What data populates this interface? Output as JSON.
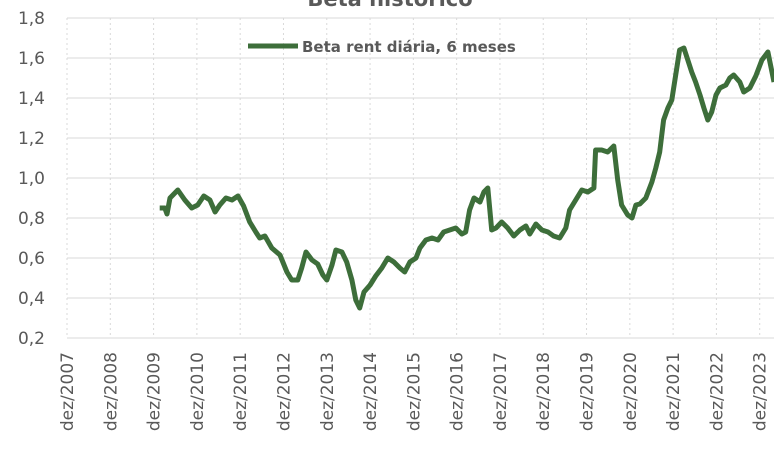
{
  "chart_data": {
    "type": "line",
    "title": "Beta histórico",
    "x": [
      2010.06,
      2010.18,
      2010.23,
      2010.3,
      2010.48,
      2010.64,
      2010.8,
      2010.94,
      2011.08,
      2011.22,
      2011.34,
      2011.45,
      2011.59,
      2011.73,
      2011.87,
      2012.0,
      2012.14,
      2012.28,
      2012.37,
      2012.49,
      2012.65,
      2012.84,
      2013.0,
      2013.11,
      2013.25,
      2013.34,
      2013.44,
      2013.58,
      2013.71,
      2013.83,
      2013.92,
      2014.04,
      2014.13,
      2014.27,
      2014.38,
      2014.5,
      2014.59,
      2014.68,
      2014.78,
      2014.92,
      2015.05,
      2015.19,
      2015.33,
      2015.47,
      2015.61,
      2015.72,
      2015.84,
      2015.98,
      2016.07,
      2016.21,
      2016.35,
      2016.49,
      2016.62,
      2016.76,
      2016.9,
      2017.04,
      2017.13,
      2017.22,
      2017.32,
      2017.46,
      2017.55,
      2017.64,
      2017.73,
      2017.83,
      2017.96,
      2018.1,
      2018.24,
      2018.38,
      2018.52,
      2018.61,
      2018.75,
      2018.89,
      2019.03,
      2019.16,
      2019.3,
      2019.44,
      2019.53,
      2019.67,
      2019.81,
      2019.95,
      2020.09,
      2020.13,
      2020.27,
      2020.41,
      2020.55,
      2020.64,
      2020.73,
      2020.87,
      2020.97,
      2021.06,
      2021.15,
      2021.29,
      2021.43,
      2021.52,
      2021.61,
      2021.7,
      2021.8,
      2021.89,
      2021.98,
      2022.07,
      2022.17,
      2022.26,
      2022.35,
      2022.44,
      2022.54,
      2022.63,
      2022.72,
      2022.81,
      2022.91,
      2023.0,
      2023.14,
      2023.23,
      2023.32,
      2023.46,
      2023.55,
      2023.69,
      2023.83,
      2023.97,
      2024.11,
      2024.25
    ],
    "series": [
      {
        "name": "Beta rent diária, 6 meses",
        "color": "#3d6e3a",
        "values": [
          0.85,
          0.85,
          0.82,
          0.9,
          0.94,
          0.89,
          0.85,
          0.865,
          0.91,
          0.89,
          0.83,
          0.865,
          0.9,
          0.89,
          0.91,
          0.86,
          0.78,
          0.73,
          0.7,
          0.71,
          0.65,
          0.615,
          0.53,
          0.49,
          0.49,
          0.55,
          0.63,
          0.59,
          0.57,
          0.515,
          0.49,
          0.565,
          0.64,
          0.63,
          0.58,
          0.49,
          0.39,
          0.35,
          0.43,
          0.465,
          0.51,
          0.55,
          0.6,
          0.58,
          0.55,
          0.53,
          0.58,
          0.6,
          0.65,
          0.69,
          0.7,
          0.69,
          0.73,
          0.74,
          0.75,
          0.72,
          0.73,
          0.84,
          0.9,
          0.88,
          0.93,
          0.95,
          0.74,
          0.75,
          0.78,
          0.75,
          0.71,
          0.74,
          0.76,
          0.72,
          0.77,
          0.74,
          0.73,
          0.71,
          0.7,
          0.75,
          0.84,
          0.89,
          0.94,
          0.93,
          0.95,
          1.14,
          1.14,
          1.13,
          1.16,
          0.99,
          0.865,
          0.815,
          0.8,
          0.865,
          0.87,
          0.9,
          0.98,
          1.05,
          1.13,
          1.29,
          1.35,
          1.39,
          1.515,
          1.64,
          1.65,
          1.59,
          1.53,
          1.48,
          1.415,
          1.35,
          1.29,
          1.33,
          1.415,
          1.45,
          1.465,
          1.5,
          1.515,
          1.48,
          1.43,
          1.45,
          1.51,
          1.59,
          1.63,
          1.48
        ]
      }
    ],
    "xlim": [
      2007.92,
      2024.25
    ],
    "xticks": [
      {
        "value": 2007.92,
        "label": "dez/2007"
      },
      {
        "value": 2008.92,
        "label": "dez/2008"
      },
      {
        "value": 2009.92,
        "label": "dez/2009"
      },
      {
        "value": 2010.92,
        "label": "dez/2010"
      },
      {
        "value": 2011.92,
        "label": "dez/2011"
      },
      {
        "value": 2012.92,
        "label": "dez/2012"
      },
      {
        "value": 2013.92,
        "label": "dez/2013"
      },
      {
        "value": 2014.92,
        "label": "dez/2014"
      },
      {
        "value": 2015.92,
        "label": "dez/2015"
      },
      {
        "value": 2016.92,
        "label": "dez/2016"
      },
      {
        "value": 2017.92,
        "label": "dez/2017"
      },
      {
        "value": 2018.92,
        "label": "dez/2018"
      },
      {
        "value": 2019.92,
        "label": "dez/2019"
      },
      {
        "value": 2020.92,
        "label": "dez/2020"
      },
      {
        "value": 2021.92,
        "label": "dez/2021"
      },
      {
        "value": 2022.92,
        "label": "dez/2022"
      },
      {
        "value": 2023.92,
        "label": "dez/2023"
      }
    ],
    "ylim": [
      0.2,
      1.8
    ],
    "yticks": [
      {
        "value": 0.2,
        "label": "0,2"
      },
      {
        "value": 0.4,
        "label": "0,4"
      },
      {
        "value": 0.6,
        "label": "0,6"
      },
      {
        "value": 0.8,
        "label": "0,8"
      },
      {
        "value": 1.0,
        "label": "1,0"
      },
      {
        "value": 1.2,
        "label": "1,2"
      },
      {
        "value": 1.4,
        "label": "1,4"
      },
      {
        "value": 1.6,
        "label": "1,6"
      },
      {
        "value": 1.8,
        "label": "1,8"
      }
    ],
    "grid": true,
    "legend": "top"
  }
}
